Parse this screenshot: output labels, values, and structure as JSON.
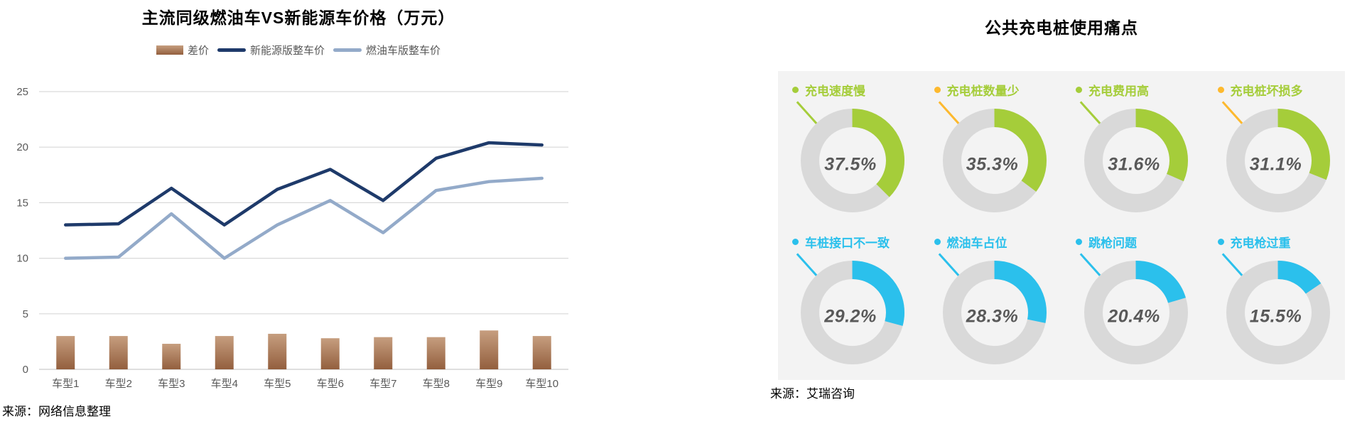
{
  "chart_data": [
    {
      "type": "bar+line",
      "title": "主流同级燃油车VS新能源车价格（万元）",
      "source": "来源：网络信息整理",
      "categories": [
        "车型1",
        "车型2",
        "车型3",
        "车型4",
        "车型5",
        "车型6",
        "车型7",
        "车型8",
        "车型9",
        "车型10"
      ],
      "series": [
        {
          "name": "差价",
          "render": "bar",
          "color_top": "#c69e7f",
          "color_bottom": "#935f3e",
          "values": [
            3.0,
            3.0,
            2.3,
            3.0,
            3.2,
            2.8,
            2.9,
            2.9,
            3.5,
            3.0
          ]
        },
        {
          "name": "新能源版整车价",
          "render": "line",
          "color": "#1e3a6a",
          "values": [
            13.0,
            13.1,
            16.3,
            13.0,
            16.2,
            18.0,
            15.2,
            19.0,
            20.4,
            20.2
          ]
        },
        {
          "name": "燃油车版整车价",
          "render": "line",
          "color": "#93aac9",
          "values": [
            10.0,
            10.1,
            14.0,
            10.0,
            13.0,
            15.2,
            12.3,
            16.1,
            16.9,
            17.2
          ]
        }
      ],
      "ylim": [
        0,
        25
      ],
      "yticks": [
        25,
        20,
        15,
        10,
        5,
        0
      ],
      "grid": true,
      "legend_position": "top",
      "grid_color": "#d9d9d9",
      "tick_label_color": "#595959"
    },
    {
      "type": "pie",
      "title": "公共充电桩使用痛点",
      "source": "来源：艾瑞咨询",
      "ring_color": "#d9d9d9",
      "percent_text_color": "#595959",
      "panel_bg": "#f3f3f3",
      "donuts": [
        {
          "label": "充电速度慢",
          "value": 37.5,
          "arc_color": "#a5cd3a",
          "label_color": "#a5cd3a",
          "dot_color": "#a5cd3a"
        },
        {
          "label": "充电桩数量少",
          "value": 35.3,
          "arc_color": "#a5cd3a",
          "label_color": "#a5cd3a",
          "dot_color": "#fdb92e"
        },
        {
          "label": "充电费用高",
          "value": 31.6,
          "arc_color": "#a5cd3a",
          "label_color": "#a5cd3a",
          "dot_color": "#a5cd3a"
        },
        {
          "label": "充电桩坏损多",
          "value": 31.1,
          "arc_color": "#a5cd3a",
          "label_color": "#a5cd3a",
          "dot_color": "#fdb92e"
        },
        {
          "label": "车桩接口不一致",
          "value": 29.2,
          "arc_color": "#2bc0ec",
          "label_color": "#2bc0ec",
          "dot_color": "#2bc0ec"
        },
        {
          "label": "燃油车占位",
          "value": 28.3,
          "arc_color": "#2bc0ec",
          "label_color": "#2bc0ec",
          "dot_color": "#2bc0ec"
        },
        {
          "label": "跳枪问题",
          "value": 20.4,
          "arc_color": "#2bc0ec",
          "label_color": "#2bc0ec",
          "dot_color": "#2bc0ec"
        },
        {
          "label": "充电枪过重",
          "value": 15.5,
          "arc_color": "#2bc0ec",
          "label_color": "#2bc0ec",
          "dot_color": "#2bc0ec"
        }
      ]
    }
  ]
}
